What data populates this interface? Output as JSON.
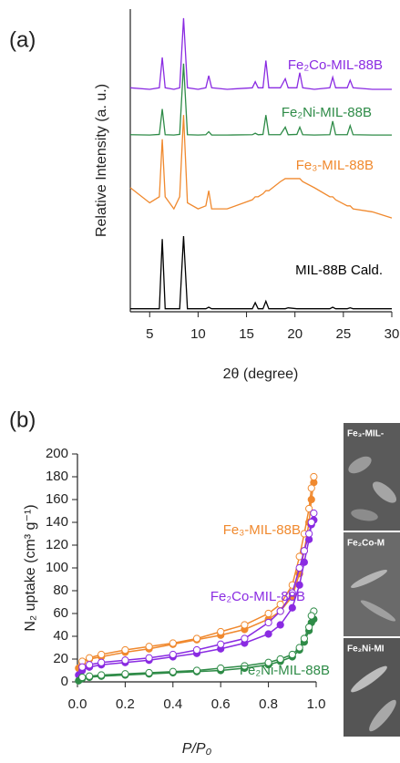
{
  "chart_data": [
    {
      "type": "line",
      "panel_label": "(a)",
      "x_label": "2θ (degree)",
      "y_label": "Relative Intensity (a. u.)",
      "xlim": [
        3,
        30
      ],
      "xticks": [
        5,
        10,
        15,
        20,
        25,
        30
      ],
      "ylim": [
        0,
        100
      ],
      "x": [
        3,
        5,
        6.0,
        6.3,
        6.6,
        7.5,
        8.1,
        8.5,
        8.9,
        10,
        10.8,
        11.1,
        11.4,
        13,
        15.6,
        15.9,
        16.2,
        16.7,
        17.0,
        17.3,
        18.5,
        19.0,
        19.3,
        20.2,
        20.5,
        20.8,
        22,
        23.6,
        23.9,
        24.2,
        25.4,
        25.7,
        26,
        28,
        30
      ],
      "series": [
        {
          "name": "Fe₂Co-MIL-88B",
          "color": "#8a2be2",
          "values": [
            74,
            73.5,
            74,
            84,
            74,
            73.5,
            74,
            97,
            74,
            73.5,
            74,
            78,
            74,
            73.5,
            74,
            76,
            74,
            74,
            83,
            74,
            74,
            77,
            74,
            74,
            79,
            74,
            73.5,
            74,
            77.5,
            74,
            74,
            76.5,
            74,
            73.5,
            73.5
          ]
        },
        {
          "name": "Fe₂Ni-MIL-88B",
          "color": "#2e8b47",
          "values": [
            58.5,
            58.4,
            58.6,
            67,
            58.5,
            58.4,
            58.6,
            82,
            58.5,
            58.4,
            58.5,
            59.5,
            58.4,
            58.4,
            58.5,
            59,
            58.5,
            58.6,
            65,
            58.5,
            58.5,
            61,
            58.5,
            58.6,
            61,
            58.5,
            58.4,
            58.5,
            63,
            58.5,
            58.5,
            61.5,
            58.5,
            58.4,
            58.4
          ]
        },
        {
          "name": "Fe₃-MIL-88B",
          "color": "#f0892e",
          "values": [
            41,
            36,
            38,
            57,
            38,
            34,
            38,
            65,
            36,
            34,
            35,
            40,
            34,
            34,
            37,
            38,
            38,
            39,
            40,
            40,
            43,
            44,
            44,
            44,
            44,
            43,
            41,
            38,
            38,
            37,
            35,
            35,
            34,
            33,
            31
          ]
        },
        {
          "name": "MIL-88B Cald.",
          "color": "#000000",
          "values": [
            1,
            1,
            1,
            24,
            1,
            1,
            1,
            25,
            1,
            1,
            1,
            1.5,
            1,
            1,
            1,
            3,
            1,
            1,
            3.5,
            1,
            1,
            1,
            1.3,
            1,
            1,
            1,
            1,
            1,
            1.5,
            1,
            1,
            1.3,
            1,
            1,
            1
          ]
        }
      ]
    },
    {
      "type": "scatter",
      "panel_label": "(b)",
      "x_label": "P/P₀",
      "y_label": "N₂ uptake (cm³ g⁻¹)",
      "xlim": [
        0,
        1.0
      ],
      "xticks": [
        {
          "value": 0,
          "label": "0.0"
        },
        0.2,
        0.4,
        0.6,
        0.8,
        {
          "value": 1,
          "label": "1.0"
        }
      ],
      "ylim": [
        0,
        200
      ],
      "yticks": [
        0,
        20,
        40,
        60,
        80,
        100,
        120,
        140,
        160,
        180,
        200
      ],
      "series": [
        {
          "name": "Fe₃-MIL-88B",
          "color": "#f0892e",
          "adsorption": {
            "x": [
              0.005,
              0.02,
              0.05,
              0.1,
              0.2,
              0.3,
              0.4,
              0.5,
              0.6,
              0.7,
              0.8,
              0.85,
              0.9,
              0.93,
              0.95,
              0.97,
              0.98,
              0.99
            ],
            "values": [
              12,
              17,
              20,
              22,
              26,
              29,
              33,
              37,
              41,
              46,
              55,
              62,
              75,
              95,
              115,
              140,
              160,
              175
            ]
          },
          "desorption": {
            "x": [
              0.99,
              0.98,
              0.97,
              0.95,
              0.93,
              0.9,
              0.85,
              0.8,
              0.7,
              0.6,
              0.5,
              0.4,
              0.3,
              0.2,
              0.1,
              0.05,
              0.02
            ],
            "values": [
              180,
              170,
              152,
              130,
              110,
              85,
              68,
              60,
              50,
              44,
              38,
              34,
              31,
              28,
              24,
              21,
              18
            ]
          }
        },
        {
          "name": "Fe₂Co-MIL-88B",
          "color": "#8a2be2",
          "adsorption": {
            "x": [
              0.005,
              0.02,
              0.05,
              0.1,
              0.2,
              0.3,
              0.4,
              0.5,
              0.6,
              0.7,
              0.8,
              0.85,
              0.9,
              0.93,
              0.95,
              0.97,
              0.98,
              0.99
            ],
            "values": [
              6,
              10,
              13,
              15,
              17,
              19,
              22,
              25,
              29,
              34,
              42,
              50,
              65,
              85,
              105,
              125,
              138,
              142
            ]
          },
          "desorption": {
            "x": [
              0.99,
              0.98,
              0.97,
              0.95,
              0.93,
              0.9,
              0.85,
              0.8,
              0.7,
              0.6,
              0.5,
              0.4,
              0.3,
              0.2,
              0.1,
              0.05,
              0.02
            ],
            "values": [
              148,
              140,
              130,
              115,
              100,
              78,
              62,
              52,
              38,
              33,
              28,
              24,
              21,
              19,
              17,
              15,
              13
            ]
          }
        },
        {
          "name": "Fe₂Ni-MIL-88B",
          "color": "#2e8b47",
          "adsorption": {
            "x": [
              0.005,
              0.02,
              0.05,
              0.1,
              0.2,
              0.3,
              0.4,
              0.5,
              0.6,
              0.7,
              0.8,
              0.85,
              0.9,
              0.93,
              0.95,
              0.97,
              0.98,
              0.99
            ],
            "values": [
              1,
              3,
              4,
              5,
              6,
              7,
              8,
              9,
              10,
              12,
              15,
              18,
              22,
              28,
              35,
              45,
              52,
              55
            ]
          },
          "desorption": {
            "x": [
              0.99,
              0.98,
              0.97,
              0.95,
              0.93,
              0.9,
              0.85,
              0.8,
              0.7,
              0.6,
              0.5,
              0.4,
              0.3,
              0.2,
              0.1,
              0.05,
              0.02
            ],
            "values": [
              62,
              58,
              48,
              38,
              30,
              24,
              20,
              17,
              14,
              12,
              10,
              9,
              8,
              7,
              6,
              5,
              4
            ]
          }
        }
      ]
    }
  ],
  "images": [
    {
      "label": "Fe₃-MIL-"
    },
    {
      "label": "Fe₂Co-M"
    },
    {
      "label": "Fe₂Ni-MI"
    }
  ]
}
